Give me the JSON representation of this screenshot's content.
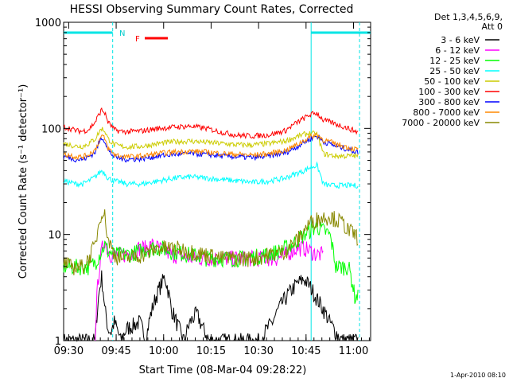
{
  "chart_data": {
    "type": "line",
    "title": "HESSI Observing Summary Count Rates, Corrected",
    "xlabel": "Start Time (08-Mar-04 09:28:22)",
    "ylabel": "Corrected Count Rate (s⁻¹ detector⁻¹)",
    "x_unit": "minutes since 09:28:22",
    "xlim": [
      0,
      97
    ],
    "ylim": [
      1,
      1000
    ],
    "y_scale": "log",
    "grid": false,
    "legend_position": "right",
    "x_ticks": [
      {
        "label": "09:30",
        "value": 1.6
      },
      {
        "label": "09:45",
        "value": 16.6
      },
      {
        "label": "10:00",
        "value": 31.6
      },
      {
        "label": "10:15",
        "value": 46.6
      },
      {
        "label": "10:30",
        "value": 61.6
      },
      {
        "label": "10:45",
        "value": 76.6
      },
      {
        "label": "11:00",
        "value": 91.6
      }
    ],
    "y_ticks": [
      {
        "label": "1",
        "value": 1
      },
      {
        "label": "10",
        "value": 10
      },
      {
        "label": "100",
        "value": 100
      },
      {
        "label": "1000",
        "value": 1000
      }
    ],
    "legend_header": [
      "Det 1,3,4,5,6,9,",
      "Att 0"
    ],
    "annotations": {
      "night_marker": "N",
      "flare_marker": "F",
      "timestamp": "1-Apr-2010 08:10",
      "night_segments": [
        [
          0,
          15.5
        ],
        [
          78.2,
          97
        ]
      ],
      "saa_boundaries": [
        15.5,
        78.2,
        93.5
      ]
    },
    "series": [
      {
        "name": "3 - 6 keV",
        "color": "#000000",
        "x": [
          0,
          10,
          11,
          12,
          13,
          14,
          15,
          16,
          18,
          20,
          24,
          26,
          28,
          30,
          32,
          34,
          36,
          38,
          40,
          42,
          44,
          46,
          50,
          54,
          58,
          62,
          66,
          68,
          70,
          72,
          74,
          76,
          78,
          80,
          82,
          84,
          86,
          88,
          90,
          93
        ],
        "values": [
          1,
          1,
          2.5,
          4,
          2,
          1.3,
          1.2,
          1.5,
          1,
          1.3,
          1.5,
          1,
          2,
          3,
          4,
          2,
          1.4,
          1,
          1.5,
          1.8,
          1.3,
          1,
          1,
          1,
          1,
          1,
          1.5,
          2,
          2.5,
          3,
          3.5,
          3.8,
          3.2,
          2.5,
          2,
          1.5,
          1.2,
          1,
          1,
          1
        ]
      },
      {
        "name": "6 - 12 keV",
        "color": "#ff00ff",
        "x": [
          10,
          11,
          12,
          13,
          14,
          15,
          16,
          20,
          24,
          26,
          28,
          30,
          34,
          40,
          46,
          52,
          58,
          64,
          68,
          70,
          72,
          74,
          76,
          78,
          80,
          82
        ],
        "values": [
          1,
          4,
          7,
          9,
          7,
          6.5,
          6.5,
          6.5,
          7.5,
          7.5,
          8,
          7.5,
          6.5,
          6,
          6,
          6,
          6,
          6,
          6,
          6.5,
          7,
          7.5,
          7.5,
          7,
          6.5,
          6.5
        ]
      },
      {
        "name": "12 - 25 keV",
        "color": "#00ff00",
        "x": [
          0,
          2,
          4,
          6,
          8,
          10,
          12,
          13,
          14,
          16,
          20,
          24,
          28,
          30,
          34,
          40,
          46,
          52,
          58,
          64,
          68,
          70,
          72,
          74,
          76,
          78,
          80,
          82,
          84,
          86,
          88,
          90,
          92,
          93
        ],
        "values": [
          5,
          5,
          5,
          5,
          5,
          5.5,
          7,
          8,
          7,
          6.5,
          6.5,
          7,
          7.5,
          7.5,
          7,
          6.5,
          6,
          6,
          6,
          6.5,
          7,
          7.5,
          8,
          9,
          10,
          11,
          12,
          11,
          10,
          5,
          5,
          5,
          2.6,
          2.6
        ]
      },
      {
        "name": "25 - 50 keV",
        "color": "#00ffff",
        "x": [
          0,
          2,
          4,
          6,
          8,
          10,
          12,
          13,
          14,
          16,
          18,
          20,
          25,
          30,
          35,
          40,
          45,
          50,
          55,
          60,
          65,
          70,
          72,
          74,
          76,
          78,
          80,
          82,
          84,
          86,
          88,
          90,
          93
        ],
        "values": [
          32,
          31,
          30,
          30,
          32,
          35,
          40,
          38,
          34,
          32,
          31,
          30,
          30,
          32,
          34,
          35,
          34,
          33,
          32,
          31,
          32,
          34,
          36,
          38,
          40,
          43,
          45,
          30,
          29,
          29,
          29,
          29,
          29
        ]
      },
      {
        "name": "50 - 100 keV",
        "color": "#cccc00",
        "x": [
          0,
          2,
          4,
          6,
          8,
          10,
          12,
          13,
          14,
          16,
          18,
          20,
          25,
          30,
          35,
          40,
          45,
          50,
          55,
          60,
          65,
          70,
          72,
          74,
          76,
          78,
          80,
          82,
          84,
          86,
          88,
          90,
          93
        ],
        "values": [
          72,
          70,
          68,
          68,
          72,
          80,
          100,
          95,
          80,
          70,
          68,
          67,
          68,
          72,
          75,
          76,
          74,
          72,
          70,
          70,
          72,
          76,
          80,
          84,
          88,
          90,
          88,
          58,
          56,
          55,
          55,
          55,
          55
        ]
      },
      {
        "name": "100 - 300 keV",
        "color": "#ff0000",
        "x": [
          0,
          2,
          4,
          6,
          8,
          10,
          12,
          13,
          14,
          16,
          18,
          20,
          25,
          30,
          35,
          40,
          45,
          50,
          55,
          60,
          65,
          70,
          72,
          74,
          76,
          78,
          80,
          82,
          84,
          86,
          88,
          90,
          93
        ],
        "values": [
          103,
          100,
          95,
          94,
          98,
          115,
          150,
          140,
          115,
          97,
          94,
          93,
          95,
          100,
          103,
          105,
          100,
          92,
          86,
          85,
          87,
          95,
          105,
          115,
          125,
          135,
          140,
          120,
          115,
          110,
          105,
          100,
          92
        ]
      },
      {
        "name": "300 - 800 keV",
        "color": "#0000ff",
        "x": [
          0,
          2,
          4,
          6,
          8,
          10,
          12,
          13,
          14,
          16,
          18,
          20,
          25,
          30,
          35,
          40,
          45,
          50,
          55,
          60,
          65,
          70,
          72,
          74,
          76,
          78,
          80,
          82,
          84,
          86,
          88,
          90,
          93
        ],
        "values": [
          54,
          53,
          51,
          51,
          54,
          60,
          82,
          77,
          62,
          54,
          52,
          51,
          52,
          55,
          57,
          58,
          57,
          55,
          54,
          53,
          55,
          59,
          63,
          68,
          74,
          80,
          85,
          75,
          72,
          68,
          66,
          63,
          60
        ]
      },
      {
        "name": "800 - 7000 keV",
        "color": "#ff8800",
        "x": [
          0,
          2,
          4,
          6,
          8,
          10,
          12,
          13,
          14,
          16,
          18,
          20,
          25,
          30,
          35,
          40,
          45,
          50,
          55,
          60,
          65,
          70,
          72,
          74,
          76,
          78,
          80,
          82,
          84,
          86,
          88,
          90,
          93
        ],
        "values": [
          57,
          56,
          54,
          54,
          57,
          63,
          85,
          80,
          65,
          57,
          55,
          54,
          55,
          58,
          60,
          61,
          60,
          58,
          57,
          56,
          58,
          62,
          66,
          71,
          77,
          83,
          88,
          78,
          75,
          71,
          69,
          66,
          63
        ]
      },
      {
        "name": "7000 - 20000 keV",
        "color": "#888800",
        "x": [
          0,
          2,
          4,
          6,
          8,
          10,
          11,
          12,
          13,
          14,
          16,
          18,
          20,
          25,
          30,
          35,
          40,
          45,
          50,
          55,
          60,
          65,
          70,
          72,
          74,
          76,
          78,
          80,
          82,
          84,
          86,
          88,
          90,
          93
        ],
        "values": [
          5.5,
          5,
          5,
          5,
          6,
          8,
          12,
          17,
          15,
          9,
          6.5,
          6,
          6,
          6.5,
          7.5,
          7.5,
          7,
          6.5,
          6,
          6,
          6,
          6.5,
          7,
          8,
          9,
          11,
          13,
          14,
          14.5,
          15,
          14,
          13,
          11,
          9.5
        ]
      }
    ]
  }
}
